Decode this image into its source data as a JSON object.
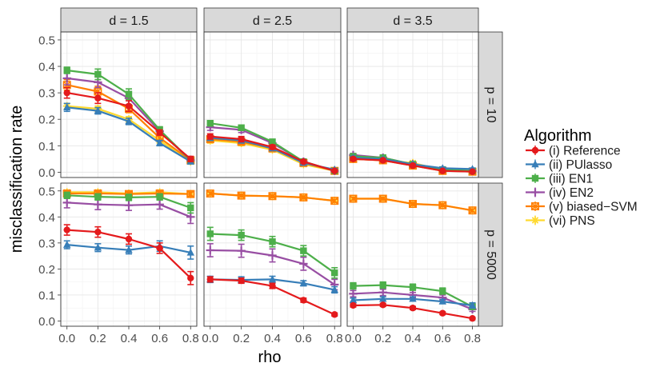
{
  "chart_data": {
    "type": "line",
    "title": "",
    "xlabel": "rho",
    "ylabel": "misclassification rate",
    "x": [
      0.0,
      0.2,
      0.4,
      0.6,
      0.8
    ],
    "x_ticks": [
      "0.0",
      "0.2",
      "0.4",
      "0.6",
      "0.8"
    ],
    "ylim": [
      -0.02,
      0.53
    ],
    "y_ticks": [
      "0.0",
      "0.1",
      "0.2",
      "0.3",
      "0.4",
      "0.5"
    ],
    "grid": true,
    "col_strips": [
      "d = 1.5",
      "d = 2.5",
      "d = 3.5"
    ],
    "row_strips": [
      "p = 10",
      "p = 5000"
    ],
    "legend": {
      "title": "Algorithm",
      "position": "right",
      "entries": [
        "(i) Reference",
        "(ii) PUlasso",
        "(iii) EN1",
        "(iv) EN2",
        "(v) biased−SVM",
        "(vi) PNS"
      ]
    },
    "series_style": [
      {
        "name": "(i) Reference",
        "color": "#e41a1c",
        "marker": "circle"
      },
      {
        "name": "(ii) PUlasso",
        "color": "#377eb8",
        "marker": "triangle"
      },
      {
        "name": "(iii) EN1",
        "color": "#4daf4a",
        "marker": "square"
      },
      {
        "name": "(iv) EN2",
        "color": "#984ea3",
        "marker": "plus"
      },
      {
        "name": "(v) biased−SVM",
        "color": "#ff7f00",
        "marker": "boxtimes"
      },
      {
        "name": "(vi) PNS",
        "color": "#ffd92f",
        "marker": "asterisk"
      }
    ],
    "panels": [
      {
        "d": "d = 1.5",
        "p": "p = 10",
        "series": [
          {
            "name": "(i) Reference",
            "values": [
              0.3,
              0.28,
              0.25,
              0.15,
              0.05
            ],
            "err": [
              0.02,
              0.02,
              0.02,
              0.01,
              0.01
            ]
          },
          {
            "name": "(ii) PUlasso",
            "values": [
              0.245,
              0.232,
              0.192,
              0.11,
              0.04
            ],
            "err": [
              0.015,
              0.012,
              0.012,
              0.01,
              0.008
            ]
          },
          {
            "name": "(iii) EN1",
            "values": [
              0.385,
              0.37,
              0.295,
              0.16,
              0.045
            ],
            "err": [
              0.012,
              0.02,
              0.02,
              0.012,
              0.01
            ]
          },
          {
            "name": "(iv) EN2",
            "values": [
              0.355,
              0.34,
              0.28,
              0.155,
              0.045
            ],
            "err": [
              0.025,
              0.02,
              0.025,
              0.015,
              0.01
            ]
          },
          {
            "name": "(v) biased−SVM",
            "values": [
              0.33,
              0.305,
              0.24,
              0.13,
              0.045
            ],
            "err": [
              0.02,
              0.02,
              0.015,
              0.01,
              0.008
            ]
          },
          {
            "name": "(vi) PNS",
            "values": [
              0.25,
              0.24,
              0.2,
              0.12,
              0.04
            ],
            "err": [
              0.01,
              0.01,
              0.01,
              0.01,
              0.008
            ]
          }
        ]
      },
      {
        "d": "d = 2.5",
        "p": "p = 10",
        "series": [
          {
            "name": "(i) Reference",
            "values": [
              0.135,
              0.125,
              0.095,
              0.04,
              0.005
            ],
            "err": [
              0.01,
              0.01,
              0.008,
              0.006,
              0.004
            ]
          },
          {
            "name": "(ii) PUlasso",
            "values": [
              0.13,
              0.12,
              0.09,
              0.035,
              0.01
            ],
            "err": [
              0.01,
              0.01,
              0.008,
              0.006,
              0.004
            ]
          },
          {
            "name": "(iii) EN1",
            "values": [
              0.185,
              0.168,
              0.115,
              0.04,
              0.005
            ],
            "err": [
              0.01,
              0.01,
              0.008,
              0.006,
              0.004
            ]
          },
          {
            "name": "(iv) EN2",
            "values": [
              0.17,
              0.16,
              0.11,
              0.04,
              0.005
            ],
            "err": [
              0.012,
              0.01,
              0.008,
              0.006,
              0.004
            ]
          },
          {
            "name": "(v) biased−SVM",
            "values": [
              0.125,
              0.115,
              0.09,
              0.035,
              0.005
            ],
            "err": [
              0.01,
              0.01,
              0.008,
              0.006,
              0.004
            ]
          },
          {
            "name": "(vi) PNS",
            "values": [
              0.12,
              0.11,
              0.085,
              0.03,
              0.005
            ],
            "err": [
              0.01,
              0.01,
              0.008,
              0.006,
              0.004
            ]
          }
        ]
      },
      {
        "d": "d = 3.5",
        "p": "p = 10",
        "series": [
          {
            "name": "(i) Reference",
            "values": [
              0.05,
              0.045,
              0.025,
              0.005,
              0.002
            ],
            "err": [
              0.006,
              0.005,
              0.005,
              0.004,
              0.003
            ]
          },
          {
            "name": "(ii) PUlasso",
            "values": [
              0.055,
              0.05,
              0.03,
              0.015,
              0.012
            ],
            "err": [
              0.006,
              0.005,
              0.005,
              0.004,
              0.004
            ]
          },
          {
            "name": "(iii) EN1",
            "values": [
              0.06,
              0.055,
              0.03,
              0.01,
              0.005
            ],
            "err": [
              0.006,
              0.005,
              0.005,
              0.004,
              0.003
            ]
          },
          {
            "name": "(iv) EN2",
            "values": [
              0.065,
              0.055,
              0.03,
              0.01,
              0.005
            ],
            "err": [
              0.006,
              0.005,
              0.005,
              0.004,
              0.003
            ]
          },
          {
            "name": "(v) biased−SVM",
            "values": [
              0.05,
              0.045,
              0.025,
              0.005,
              0.002
            ],
            "err": [
              0.006,
              0.005,
              0.005,
              0.004,
              0.003
            ]
          },
          {
            "name": "(vi) PNS",
            "values": [
              0.05,
              0.045,
              0.035,
              0.008,
              0.003
            ],
            "err": [
              0.006,
              0.005,
              0.005,
              0.004,
              0.003
            ]
          }
        ]
      },
      {
        "d": "d = 1.5",
        "p": "p = 5000",
        "series": [
          {
            "name": "(i) Reference",
            "values": [
              0.35,
              0.342,
              0.315,
              0.28,
              0.165
            ],
            "err": [
              0.02,
              0.02,
              0.02,
              0.02,
              0.025
            ]
          },
          {
            "name": "(ii) PUlasso",
            "values": [
              0.293,
              0.282,
              0.273,
              0.288,
              0.263
            ],
            "err": [
              0.015,
              0.015,
              0.015,
              0.02,
              0.025
            ]
          },
          {
            "name": "(iii) EN1",
            "values": [
              0.483,
              0.477,
              0.475,
              0.477,
              0.435
            ],
            "err": [
              0.012,
              0.012,
              0.012,
              0.012,
              0.02
            ]
          },
          {
            "name": "(iv) EN2",
            "values": [
              0.455,
              0.448,
              0.445,
              0.448,
              0.4
            ],
            "err": [
              0.02,
              0.02,
              0.02,
              0.018,
              0.025
            ]
          },
          {
            "name": "(v) biased−SVM",
            "values": [
              0.49,
              0.49,
              0.488,
              0.49,
              0.488
            ],
            "err": [
              0.008,
              0.008,
              0.008,
              0.008,
              0.008
            ]
          },
          {
            "name": "(vi) PNS",
            "values": [
              0.495,
              0.495,
              0.49,
              0.495,
              0.488
            ],
            "err": [
              0.008,
              0.008,
              0.008,
              0.008,
              0.008
            ]
          }
        ]
      },
      {
        "d": "d = 2.5",
        "p": "p = 5000",
        "series": [
          {
            "name": "(i) Reference",
            "values": [
              0.16,
              0.155,
              0.135,
              0.08,
              0.025
            ],
            "err": [
              0.01,
              0.01,
              0.01,
              0.008,
              0.006
            ]
          },
          {
            "name": "(ii) PUlasso",
            "values": [
              0.16,
              0.158,
              0.16,
              0.145,
              0.12
            ],
            "err": [
              0.012,
              0.012,
              0.012,
              0.01,
              0.012
            ]
          },
          {
            "name": "(iii) EN1",
            "values": [
              0.335,
              0.33,
              0.305,
              0.27,
              0.185
            ],
            "err": [
              0.025,
              0.02,
              0.02,
              0.02,
              0.02
            ]
          },
          {
            "name": "(iv) EN2",
            "values": [
              0.272,
              0.27,
              0.252,
              0.22,
              0.14
            ],
            "err": [
              0.025,
              0.025,
              0.025,
              0.025,
              0.02
            ]
          },
          {
            "name": "(v) biased−SVM",
            "values": [
              0.49,
              0.482,
              0.48,
              0.475,
              0.462
            ],
            "err": [
              0.006,
              0.006,
              0.006,
              0.006,
              0.006
            ]
          },
          {
            "name": "(vi) PNS",
            "values": [
              0.49,
              0.482,
              0.48,
              0.475,
              0.462
            ],
            "err": [
              0.006,
              0.006,
              0.006,
              0.006,
              0.006
            ]
          }
        ]
      },
      {
        "d": "d = 3.5",
        "p": "p = 5000",
        "series": [
          {
            "name": "(i) Reference",
            "values": [
              0.06,
              0.062,
              0.05,
              0.03,
              0.01
            ],
            "err": [
              0.006,
              0.006,
              0.006,
              0.005,
              0.004
            ]
          },
          {
            "name": "(ii) PUlasso",
            "values": [
              0.08,
              0.085,
              0.085,
              0.075,
              0.06
            ],
            "err": [
              0.008,
              0.008,
              0.008,
              0.008,
              0.01
            ]
          },
          {
            "name": "(iii) EN1",
            "values": [
              0.135,
              0.138,
              0.13,
              0.115,
              0.055
            ],
            "err": [
              0.012,
              0.012,
              0.012,
              0.012,
              0.01
            ]
          },
          {
            "name": "(iv) EN2",
            "values": [
              0.105,
              0.11,
              0.1,
              0.09,
              0.045
            ],
            "err": [
              0.012,
              0.012,
              0.01,
              0.01,
              0.008
            ]
          },
          {
            "name": "(v) biased−SVM",
            "values": [
              0.47,
              0.47,
              0.45,
              0.445,
              0.425
            ],
            "err": [
              0.006,
              0.006,
              0.006,
              0.006,
              0.006
            ]
          },
          {
            "name": "(vi) PNS",
            "values": [
              0.47,
              0.47,
              0.45,
              0.445,
              0.425
            ],
            "err": [
              0.006,
              0.006,
              0.006,
              0.006,
              0.006
            ]
          }
        ]
      }
    ]
  }
}
